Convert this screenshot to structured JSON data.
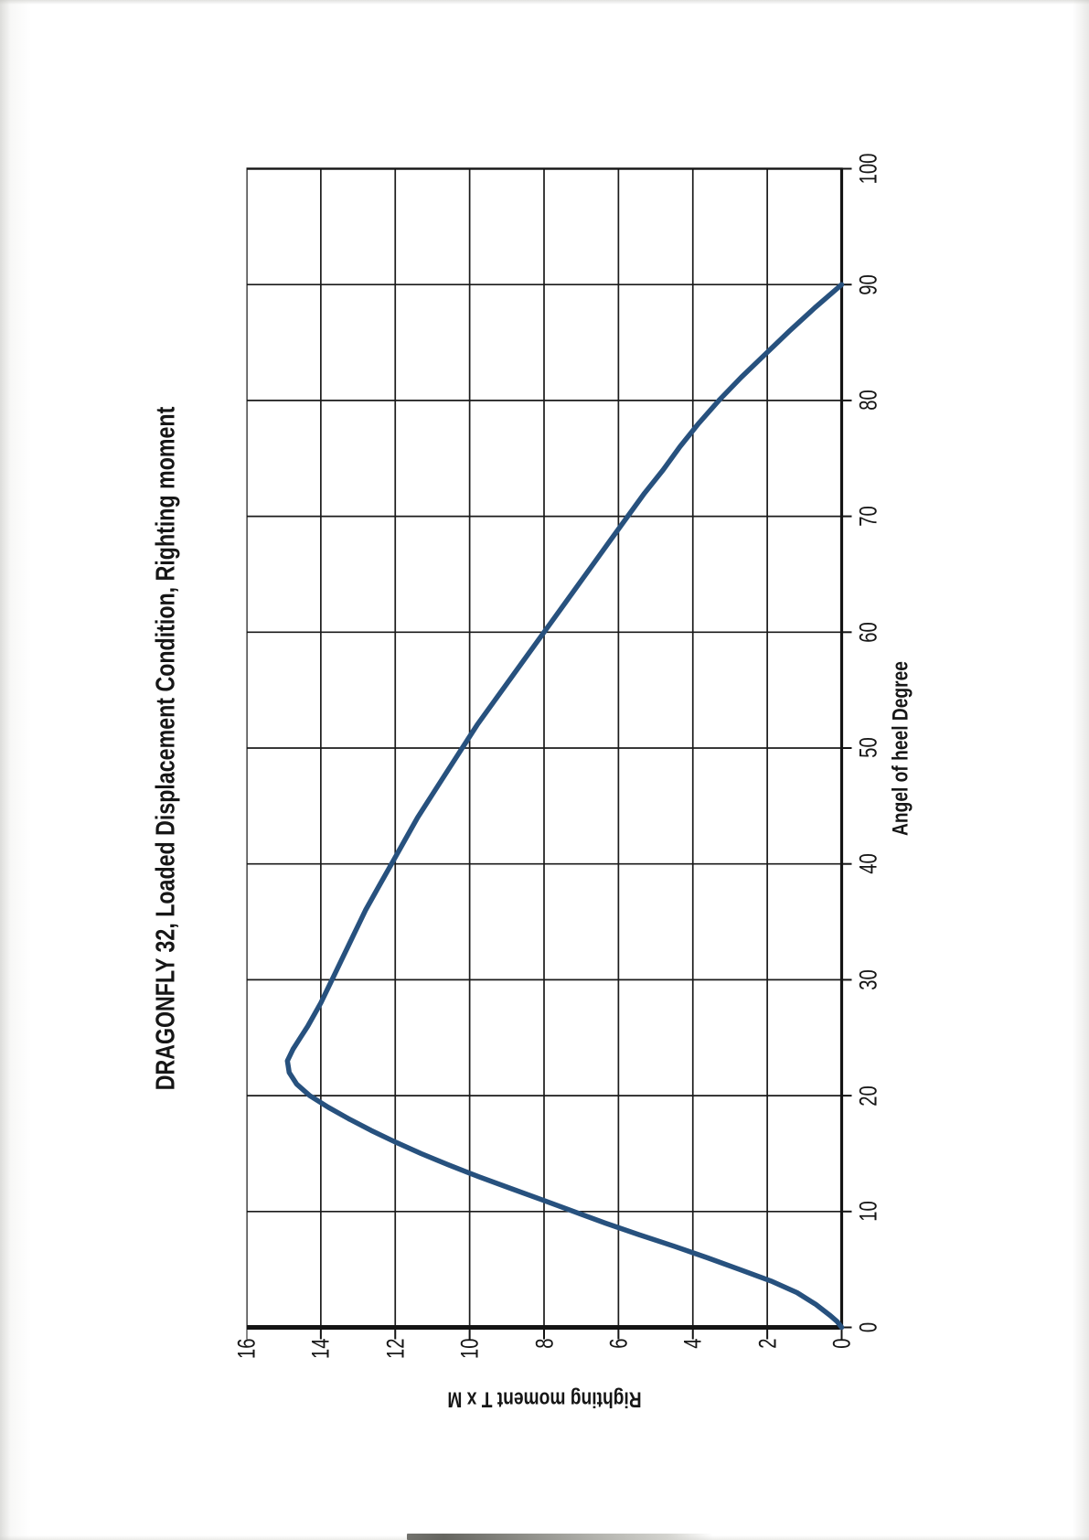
{
  "chart_data": {
    "type": "line",
    "title": "DRAGONFLY 32, Loaded Displacement Condition, Righting moment",
    "xlabel": "Angel of heel Degree",
    "ylabel": "Righting moment T x M",
    "xlim": [
      0,
      100
    ],
    "ylim": [
      0,
      16
    ],
    "x_ticks": [
      0,
      10,
      20,
      30,
      40,
      50,
      60,
      70,
      80,
      90,
      100
    ],
    "y_ticks": [
      0,
      2,
      4,
      6,
      8,
      10,
      12,
      14,
      16
    ],
    "grid": true,
    "legend": false,
    "rotation_on_page_deg": -90,
    "line_color": "#27517e",
    "series": [
      {
        "name": "Righting moment",
        "points": [
          [
            0,
            0
          ],
          [
            0.5,
            0.12
          ],
          [
            1,
            0.3
          ],
          [
            2,
            0.7
          ],
          [
            3,
            1.2
          ],
          [
            4,
            1.9
          ],
          [
            5,
            2.75
          ],
          [
            6,
            3.6
          ],
          [
            7,
            4.5
          ],
          [
            8,
            5.45
          ],
          [
            9,
            6.35
          ],
          [
            10,
            7.2
          ],
          [
            11,
            8.05
          ],
          [
            12,
            8.9
          ],
          [
            13,
            9.75
          ],
          [
            14,
            10.55
          ],
          [
            15,
            11.3
          ],
          [
            16,
            12.0
          ],
          [
            17,
            12.65
          ],
          [
            18,
            13.25
          ],
          [
            19,
            13.8
          ],
          [
            20,
            14.3
          ],
          [
            21,
            14.65
          ],
          [
            22,
            14.85
          ],
          [
            23,
            14.9
          ],
          [
            24,
            14.75
          ],
          [
            25,
            14.55
          ],
          [
            26,
            14.35
          ],
          [
            28,
            14.0
          ],
          [
            30,
            13.7
          ],
          [
            32,
            13.4
          ],
          [
            34,
            13.1
          ],
          [
            36,
            12.8
          ],
          [
            38,
            12.45
          ],
          [
            40,
            12.1
          ],
          [
            42,
            11.75
          ],
          [
            44,
            11.4
          ],
          [
            46,
            11.0
          ],
          [
            48,
            10.6
          ],
          [
            50,
            10.2
          ],
          [
            52,
            9.8
          ],
          [
            54,
            9.35
          ],
          [
            56,
            8.9
          ],
          [
            58,
            8.45
          ],
          [
            60,
            8.0
          ],
          [
            62,
            7.55
          ],
          [
            64,
            7.1
          ],
          [
            66,
            6.65
          ],
          [
            68,
            6.2
          ],
          [
            70,
            5.75
          ],
          [
            72,
            5.3
          ],
          [
            74,
            4.8
          ],
          [
            76,
            4.35
          ],
          [
            78,
            3.85
          ],
          [
            80,
            3.3
          ],
          [
            82,
            2.7
          ],
          [
            84,
            2.05
          ],
          [
            86,
            1.4
          ],
          [
            88,
            0.72
          ],
          [
            90,
            0
          ]
        ]
      }
    ]
  }
}
